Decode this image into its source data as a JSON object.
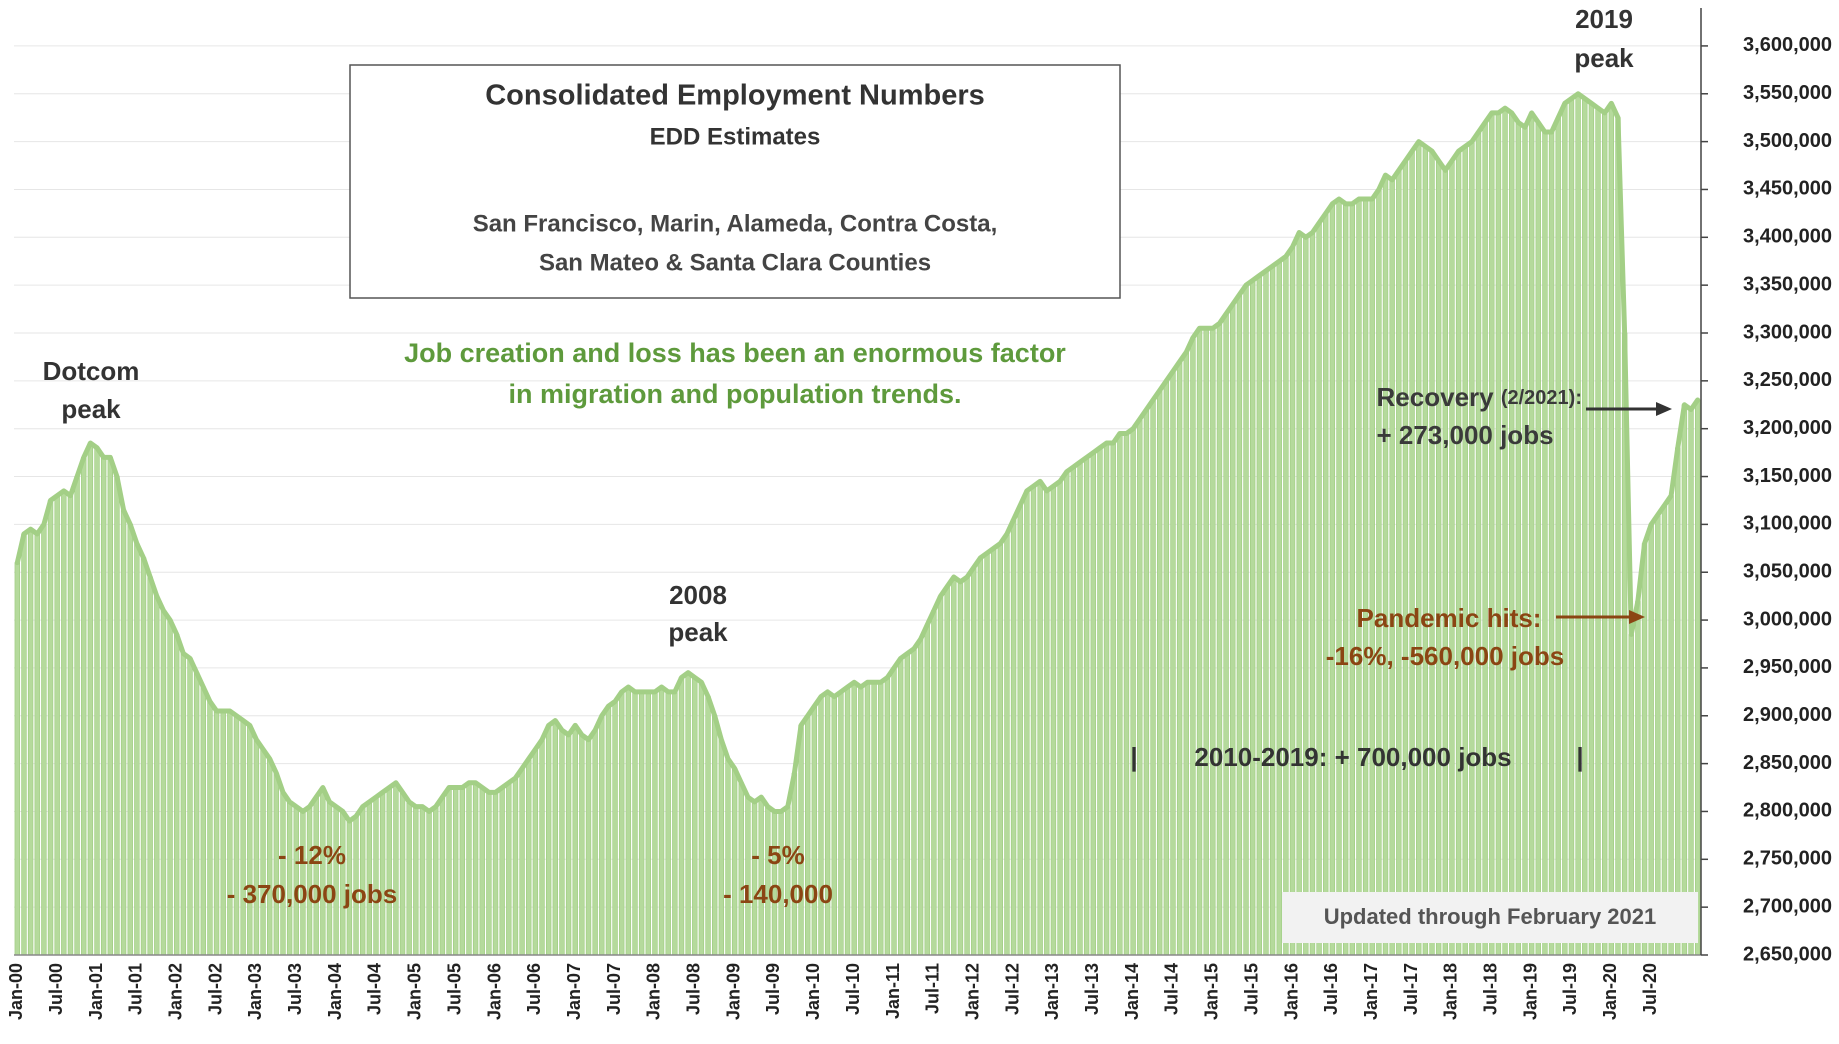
{
  "chart_data": {
    "type": "bar",
    "title": "Consolidated Employment Numbers",
    "subtitle": "EDD Estimates",
    "description": [
      "San Francisco, Marin, Alameda, Contra Costa,",
      "San Mateo & Santa Clara Counties"
    ],
    "headline": [
      "Job creation and loss has been an enormous factor",
      "in migration and population trends."
    ],
    "annotations": [
      "Dotcom",
      "peak",
      "2008",
      "peak",
      "2019",
      "peak",
      "- 12%",
      "- 370,000 jobs",
      "- 5%",
      "- 140,000",
      "Recovery",
      "(2/2021):",
      "+ 273,000 jobs",
      "Pandemic hits:",
      "-16%, -560,000 jobs",
      "|",
      "2010-2019: + 700,000 jobs",
      "|"
    ],
    "updated": "Updated through February 2021",
    "color": "#b5da9c",
    "line_color": "#a3cf86",
    "grid": true,
    "ylim": [
      2650000,
      3625000
    ],
    "yticks": [
      {
        "value": 2650000,
        "label": "2,650,000"
      },
      {
        "value": 2700000,
        "label": "2,700,000"
      },
      {
        "value": 2750000,
        "label": "2,750,000"
      },
      {
        "value": 2800000,
        "label": "2,800,000"
      },
      {
        "value": 2850000,
        "label": "2,850,000"
      },
      {
        "value": 2900000,
        "label": "2,900,000"
      },
      {
        "value": 2950000,
        "label": "2,950,000"
      },
      {
        "value": 3000000,
        "label": "3,000,000"
      },
      {
        "value": 3050000,
        "label": "3,050,000"
      },
      {
        "value": 3100000,
        "label": "3,100,000"
      },
      {
        "value": 3150000,
        "label": "3,150,000"
      },
      {
        "value": 3200000,
        "label": "3,200,000"
      },
      {
        "value": 3250000,
        "label": "3,250,000"
      },
      {
        "value": 3300000,
        "label": "3,300,000"
      },
      {
        "value": 3350000,
        "label": "3,350,000"
      },
      {
        "value": 3400000,
        "label": "3,400,000"
      },
      {
        "value": 3450000,
        "label": "3,450,000"
      },
      {
        "value": 3500000,
        "label": "3,500,000"
      },
      {
        "value": 3550000,
        "label": "3,550,000"
      },
      {
        "value": 3600000,
        "label": "3,600,000"
      }
    ],
    "categories": [
      "Jan-00",
      null,
      null,
      null,
      null,
      null,
      "Jul-00",
      null,
      null,
      null,
      null,
      null,
      "Jan-01",
      null,
      null,
      null,
      null,
      null,
      "Jul-01",
      null,
      null,
      null,
      null,
      null,
      "Jan-02",
      null,
      null,
      null,
      null,
      null,
      "Jul-02",
      null,
      null,
      null,
      null,
      null,
      "Jan-03",
      null,
      null,
      null,
      null,
      null,
      "Jul-03",
      null,
      null,
      null,
      null,
      null,
      "Jan-04",
      null,
      null,
      null,
      null,
      null,
      "Jul-04",
      null,
      null,
      null,
      null,
      null,
      "Jan-05",
      null,
      null,
      null,
      null,
      null,
      "Jul-05",
      null,
      null,
      null,
      null,
      null,
      "Jan-06",
      null,
      null,
      null,
      null,
      null,
      "Jul-06",
      null,
      null,
      null,
      null,
      null,
      "Jan-07",
      null,
      null,
      null,
      null,
      null,
      "Jul-07",
      null,
      null,
      null,
      null,
      null,
      "Jan-08",
      null,
      null,
      null,
      null,
      null,
      "Jul-08",
      null,
      null,
      null,
      null,
      null,
      "Jan-09",
      null,
      null,
      null,
      null,
      null,
      "Jul-09",
      null,
      null,
      null,
      null,
      null,
      "Jan-10",
      null,
      null,
      null,
      null,
      null,
      "Jul-10",
      null,
      null,
      null,
      null,
      null,
      "Jan-11",
      null,
      null,
      null,
      null,
      null,
      "Jul-11",
      null,
      null,
      null,
      null,
      null,
      "Jan-12",
      null,
      null,
      null,
      null,
      null,
      "Jul-12",
      null,
      null,
      null,
      null,
      null,
      "Jan-13",
      null,
      null,
      null,
      null,
      null,
      "Jul-13",
      null,
      null,
      null,
      null,
      null,
      "Jan-14",
      null,
      null,
      null,
      null,
      null,
      "Jul-14",
      null,
      null,
      null,
      null,
      null,
      "Jan-15",
      null,
      null,
      null,
      null,
      null,
      "Jul-15",
      null,
      null,
      null,
      null,
      null,
      "Jan-16",
      null,
      null,
      null,
      null,
      null,
      "Jul-16",
      null,
      null,
      null,
      null,
      null,
      "Jan-17",
      null,
      null,
      null,
      null,
      null,
      "Jul-17",
      null,
      null,
      null,
      null,
      null,
      "Jan-18",
      null,
      null,
      null,
      null,
      null,
      "Jul-18",
      null,
      null,
      null,
      null,
      null,
      "Jan-19",
      null,
      null,
      null,
      null,
      null,
      "Jul-19",
      null,
      null,
      null,
      null,
      null,
      "Jan-20",
      null,
      null,
      null,
      null,
      null,
      "Jul-20",
      null,
      null,
      null,
      null,
      null,
      null,
      null
    ],
    "values": [
      3060000,
      3090000,
      3095000,
      3090000,
      3100000,
      3125000,
      3130000,
      3135000,
      3130000,
      3150000,
      3170000,
      3185000,
      3180000,
      3170000,
      3170000,
      3150000,
      3115000,
      3100000,
      3080000,
      3065000,
      3045000,
      3025000,
      3010000,
      3000000,
      2985000,
      2965000,
      2960000,
      2945000,
      2930000,
      2915000,
      2905000,
      2905000,
      2905000,
      2900000,
      2895000,
      2890000,
      2875000,
      2865000,
      2855000,
      2840000,
      2820000,
      2810000,
      2805000,
      2800000,
      2805000,
      2815000,
      2825000,
      2810000,
      2805000,
      2800000,
      2790000,
      2795000,
      2805000,
      2810000,
      2815000,
      2820000,
      2825000,
      2830000,
      2820000,
      2810000,
      2805000,
      2805000,
      2800000,
      2805000,
      2815000,
      2825000,
      2825000,
      2825000,
      2830000,
      2830000,
      2825000,
      2820000,
      2820000,
      2825000,
      2830000,
      2835000,
      2845000,
      2855000,
      2865000,
      2875000,
      2890000,
      2895000,
      2885000,
      2880000,
      2890000,
      2880000,
      2875000,
      2885000,
      2900000,
      2910000,
      2915000,
      2925000,
      2930000,
      2925000,
      2925000,
      2925000,
      2925000,
      2930000,
      2925000,
      2925000,
      2940000,
      2945000,
      2940000,
      2935000,
      2920000,
      2900000,
      2875000,
      2855000,
      2845000,
      2830000,
      2815000,
      2810000,
      2815000,
      2805000,
      2800000,
      2800000,
      2805000,
      2840000,
      2890000,
      2900000,
      2910000,
      2920000,
      2925000,
      2920000,
      2925000,
      2930000,
      2935000,
      2930000,
      2935000,
      2935000,
      2935000,
      2940000,
      2950000,
      2960000,
      2965000,
      2970000,
      2980000,
      2995000,
      3010000,
      3025000,
      3035000,
      3045000,
      3040000,
      3045000,
      3055000,
      3065000,
      3070000,
      3075000,
      3080000,
      3090000,
      3105000,
      3120000,
      3135000,
      3140000,
      3145000,
      3135000,
      3140000,
      3145000,
      3155000,
      3160000,
      3165000,
      3170000,
      3175000,
      3180000,
      3185000,
      3185000,
      3195000,
      3195000,
      3200000,
      3210000,
      3220000,
      3230000,
      3240000,
      3250000,
      3260000,
      3270000,
      3280000,
      3295000,
      3305000,
      3305000,
      3305000,
      3310000,
      3320000,
      3330000,
      3340000,
      3350000,
      3355000,
      3360000,
      3365000,
      3370000,
      3375000,
      3380000,
      3390000,
      3405000,
      3400000,
      3405000,
      3415000,
      3425000,
      3435000,
      3440000,
      3435000,
      3435000,
      3440000,
      3440000,
      3440000,
      3450000,
      3465000,
      3460000,
      3470000,
      3480000,
      3490000,
      3500000,
      3495000,
      3490000,
      3480000,
      3470000,
      3480000,
      3490000,
      3495000,
      3500000,
      3510000,
      3520000,
      3530000,
      3530000,
      3535000,
      3530000,
      3520000,
      3515000,
      3530000,
      3520000,
      3510000,
      3510000,
      3525000,
      3540000,
      3545000,
      3550000,
      3545000,
      3540000,
      3535000,
      3530000,
      3540000,
      3525000,
      3300000,
      2985000,
      3020000,
      3080000,
      3100000,
      3110000,
      3120000,
      3130000,
      3180000,
      3225000,
      3220000,
      3230000
    ]
  }
}
